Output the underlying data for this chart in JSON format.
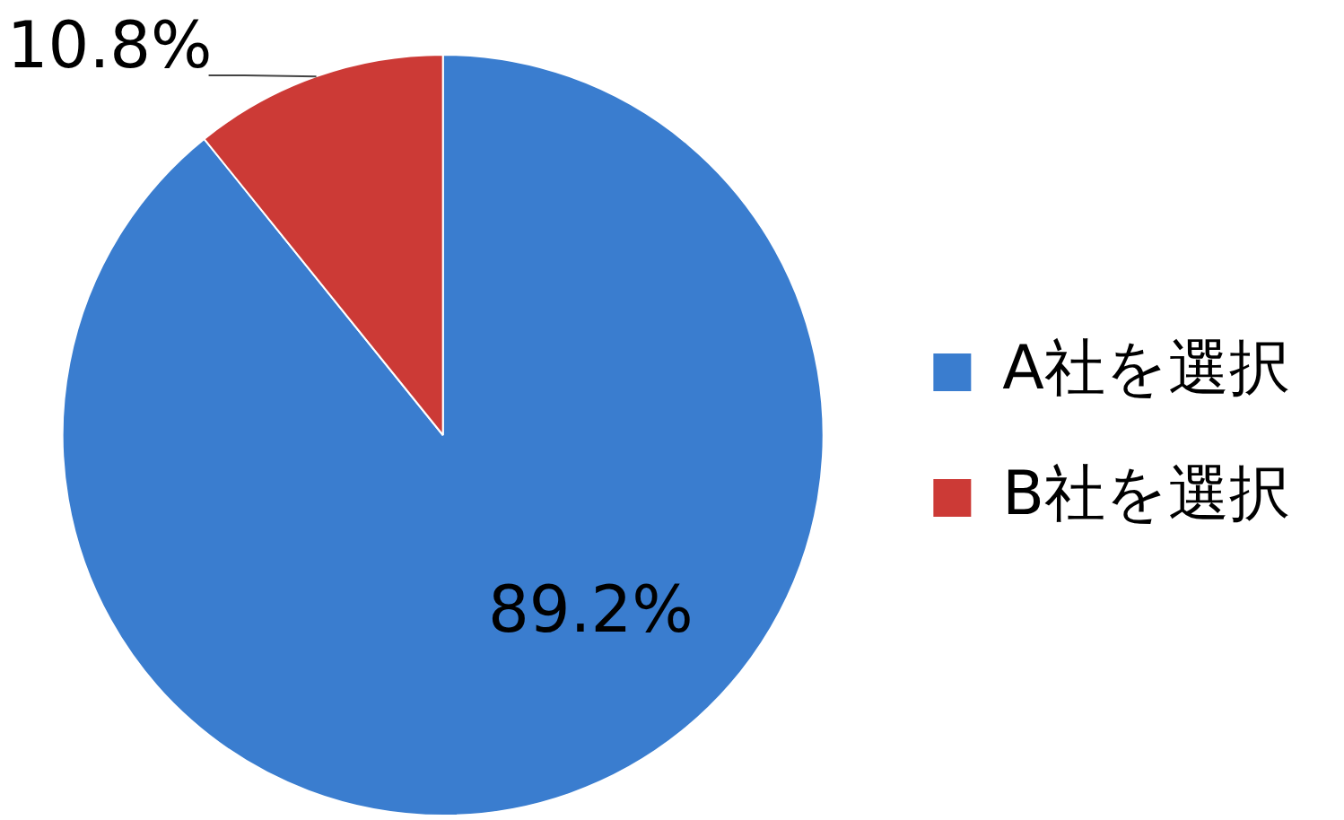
{
  "chart_data": {
    "type": "pie",
    "categories": [
      "A社を選択",
      "B社を選択"
    ],
    "values": [
      89.2,
      10.8
    ],
    "colors": [
      "#3a7dcf",
      "#cc3a36"
    ],
    "value_labels": [
      "89.2%",
      "10.8%"
    ],
    "legend": "right"
  }
}
